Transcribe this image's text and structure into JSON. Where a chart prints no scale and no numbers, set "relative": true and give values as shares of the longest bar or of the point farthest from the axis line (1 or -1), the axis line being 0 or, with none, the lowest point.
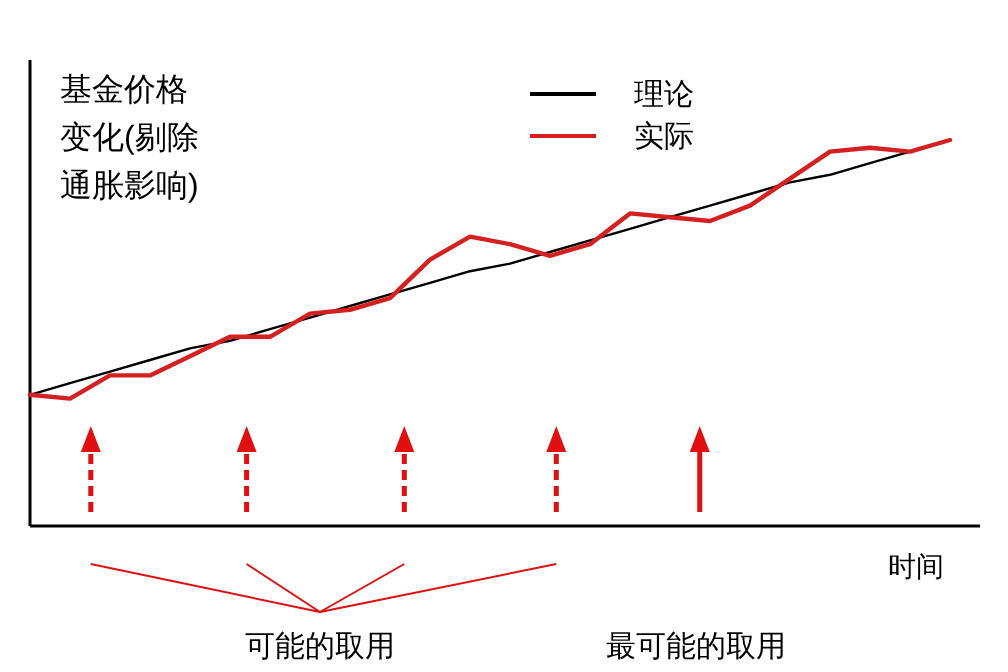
{
  "chart_data": {
    "type": "line",
    "relative": true,
    "ylabel": "基金价格变化(剔除通胀影响)",
    "xlabel": "时间",
    "legend": "top",
    "grid": false,
    "categories": [
      null,
      null,
      null,
      null,
      null,
      null,
      null,
      null,
      null,
      null,
      null,
      null,
      null,
      null,
      null,
      null,
      null,
      null,
      null,
      null,
      null,
      null,
      null,
      null
    ],
    "series": [
      {
        "name": "理论",
        "color": "#000000",
        "values": [
          0.34,
          0.37,
          0.4,
          0.43,
          0.46,
          0.48,
          0.51,
          0.54,
          0.57,
          0.6,
          0.63,
          0.66,
          0.68,
          0.71,
          0.74,
          0.77,
          0.8,
          0.83,
          0.86,
          0.89,
          0.91,
          0.94,
          0.97,
          1.0
        ]
      },
      {
        "name": "实际",
        "color": "#d42020",
        "values": [
          0.34,
          0.33,
          0.39,
          0.39,
          0.44,
          0.49,
          0.49,
          0.55,
          0.56,
          0.59,
          0.69,
          0.75,
          0.73,
          0.7,
          0.73,
          0.81,
          0.8,
          0.79,
          0.83,
          0.9,
          0.97,
          0.98,
          0.97,
          1.0
        ]
      }
    ],
    "annotations": [
      "可能的取用",
      "最可能的取用"
    ]
  }
}
